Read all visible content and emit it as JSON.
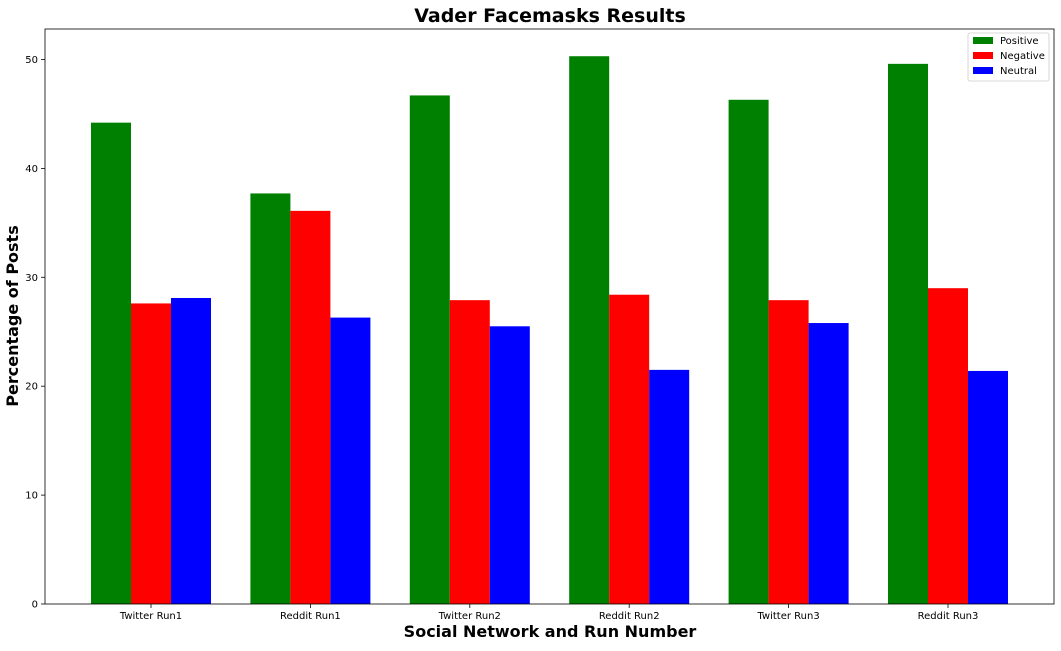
{
  "chart_data": {
    "type": "bar",
    "title": "Vader Facemasks Results",
    "xlabel": "Social Network and Run Number",
    "ylabel": "Percentage of Posts",
    "categories": [
      "Twitter Run1",
      "Reddit Run1",
      "Twitter Run2",
      "Reddit Run2",
      "Twitter Run3",
      "Reddit Run3"
    ],
    "series": [
      {
        "name": "Positive",
        "color": "#008000",
        "values": [
          44.2,
          37.7,
          46.7,
          50.3,
          46.3,
          49.6
        ]
      },
      {
        "name": "Negative",
        "color": "#ff0000",
        "values": [
          27.6,
          36.1,
          27.9,
          28.4,
          27.9,
          29.0
        ]
      },
      {
        "name": "Neutral",
        "color": "#0000ff",
        "values": [
          28.1,
          26.3,
          25.5,
          21.5,
          25.8,
          21.4
        ]
      }
    ],
    "yticks": [
      0,
      10,
      20,
      30,
      40,
      50
    ],
    "ylim": [
      0,
      52.8
    ],
    "legend": "top-right",
    "grid": false
  }
}
